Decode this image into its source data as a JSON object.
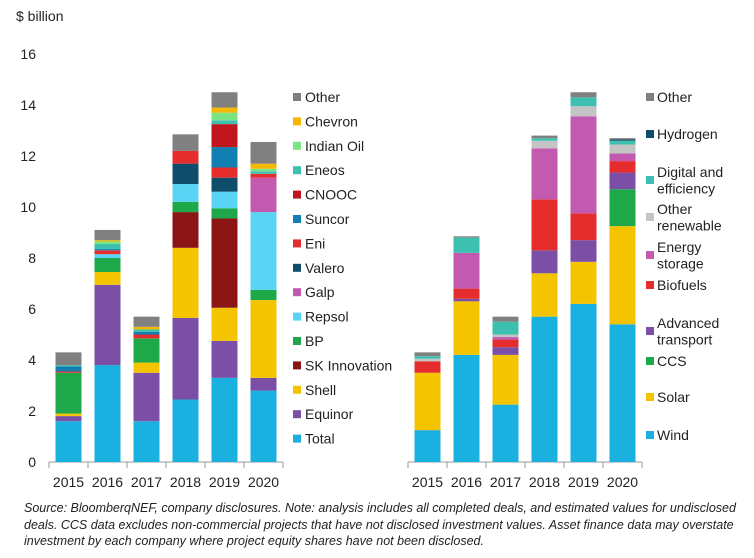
{
  "chart_data": [
    {
      "type": "bar",
      "stacked": true,
      "ylabel": "$ billion",
      "ylim": [
        0,
        16
      ],
      "yticks": [
        0,
        2,
        4,
        6,
        8,
        10,
        12,
        14,
        16
      ],
      "grid": false,
      "legend_placement": "right",
      "categories": [
        "2015",
        "2016",
        "2017",
        "2018",
        "2019",
        "2020"
      ],
      "series": [
        {
          "name": "Total",
          "color": "#1ab0e0",
          "values": [
            1.6,
            3.8,
            1.6,
            2.45,
            3.3,
            2.8
          ]
        },
        {
          "name": "Equinor",
          "color": "#7b4fa5",
          "values": [
            0.2,
            3.15,
            1.9,
            3.2,
            1.45,
            0.5
          ]
        },
        {
          "name": "Shell",
          "color": "#f5c400",
          "values": [
            0.1,
            0.5,
            0.4,
            2.75,
            1.3,
            3.05
          ]
        },
        {
          "name": "SK Innovation",
          "color": "#8b1414",
          "values": [
            0,
            0,
            0,
            1.4,
            3.5,
            0
          ]
        },
        {
          "name": "BP",
          "color": "#1fa84a",
          "values": [
            1.6,
            0.55,
            0.95,
            0.4,
            0.4,
            0.4
          ]
        },
        {
          "name": "Repsol",
          "color": "#5ad4f5",
          "values": [
            0,
            0.15,
            0,
            0.7,
            0.65,
            3.05
          ]
        },
        {
          "name": "Galp",
          "color": "#c45ab0",
          "values": [
            0,
            0,
            0,
            0,
            0,
            1.35
          ]
        },
        {
          "name": "Valero",
          "color": "#0f4e6a",
          "values": [
            0,
            0,
            0,
            0.8,
            0.55,
            0
          ]
        },
        {
          "name": "Eni",
          "color": "#e52d2d",
          "values": [
            0.05,
            0.15,
            0.15,
            0.5,
            0.4,
            0.15
          ]
        },
        {
          "name": "Suncor",
          "color": "#117fb2",
          "values": [
            0.2,
            0.05,
            0.1,
            0,
            0.8,
            0
          ]
        },
        {
          "name": "CNOOC",
          "color": "#c0161e",
          "values": [
            0,
            0,
            0,
            0,
            0.9,
            0
          ]
        },
        {
          "name": "Eneos",
          "color": "#3ec0b0",
          "values": [
            0.05,
            0.2,
            0.1,
            0,
            0.15,
            0.1
          ]
        },
        {
          "name": "Indian Oil",
          "color": "#7be382",
          "values": [
            0,
            0.1,
            0,
            0,
            0.3,
            0.1
          ]
        },
        {
          "name": "Chevron",
          "color": "#f5b800",
          "values": [
            0,
            0.05,
            0.1,
            0,
            0.2,
            0.2
          ]
        },
        {
          "name": "Other",
          "color": "#808080",
          "values": [
            0.5,
            0.4,
            0.4,
            0.65,
            0.6,
            0.85
          ]
        }
      ]
    },
    {
      "type": "bar",
      "stacked": true,
      "ylim": [
        0,
        16
      ],
      "grid": false,
      "legend_placement": "right",
      "categories": [
        "2015",
        "2016",
        "2017",
        "2018",
        "2019",
        "2020"
      ],
      "series": [
        {
          "name": "Wind",
          "color": "#1ab0e0",
          "values": [
            1.25,
            4.2,
            2.25,
            5.7,
            6.2,
            5.4
          ]
        },
        {
          "name": "Solar",
          "color": "#f5c400",
          "values": [
            2.25,
            2.1,
            1.95,
            1.7,
            1.65,
            3.85
          ]
        },
        {
          "name": "CCS",
          "color": "#1fa84a",
          "values": [
            0,
            0,
            0,
            0,
            0,
            1.45
          ]
        },
        {
          "name": "Advanced transport",
          "color": "#7b4fa5",
          "values": [
            0,
            0.1,
            0.3,
            0.9,
            0.85,
            0.65
          ]
        },
        {
          "name": "Biofuels",
          "color": "#e52d2d",
          "values": [
            0.45,
            0.4,
            0.3,
            2.0,
            1.05,
            0.45
          ]
        },
        {
          "name": "Energy storage",
          "color": "#c45ab0",
          "values": [
            0,
            1.4,
            0.1,
            2.0,
            3.8,
            0.3
          ]
        },
        {
          "name": "Other renewable",
          "color": "#c4c4c4",
          "values": [
            0.1,
            0,
            0.1,
            0.3,
            0.4,
            0.35
          ]
        },
        {
          "name": "Digital and efficiency",
          "color": "#3ec0b0",
          "values": [
            0.1,
            0.6,
            0.5,
            0.1,
            0.35,
            0.15
          ]
        },
        {
          "name": "Hydrogen",
          "color": "#0f4e6a",
          "values": [
            0,
            0,
            0,
            0,
            0,
            0.05
          ]
        },
        {
          "name": "Other",
          "color": "#808080",
          "values": [
            0.15,
            0.05,
            0.2,
            0.1,
            0.2,
            0.05
          ]
        }
      ]
    }
  ],
  "legend_left": [
    {
      "label": "Other",
      "color": "#808080"
    },
    {
      "label": "Chevron",
      "color": "#f5b800"
    },
    {
      "label": "Indian Oil",
      "color": "#7be382"
    },
    {
      "label": "Eneos",
      "color": "#3ec0b0"
    },
    {
      "label": "CNOOC",
      "color": "#c0161e"
    },
    {
      "label": "Suncor",
      "color": "#117fb2"
    },
    {
      "label": "Eni",
      "color": "#e52d2d"
    },
    {
      "label": "Valero",
      "color": "#0f4e6a"
    },
    {
      "label": "Galp",
      "color": "#c45ab0"
    },
    {
      "label": "Repsol",
      "color": "#5ad4f5"
    },
    {
      "label": "BP",
      "color": "#1fa84a"
    },
    {
      "label": "SK Innovation",
      "color": "#8b1414"
    },
    {
      "label": "Shell",
      "color": "#f5c400"
    },
    {
      "label": "Equinor",
      "color": "#7b4fa5"
    },
    {
      "label": "Total",
      "color": "#1ab0e0"
    }
  ],
  "legend_right": [
    {
      "lines": [
        "Other"
      ],
      "color": "#808080"
    },
    {
      "lines": [
        "Hydrogen"
      ],
      "color": "#0f4e6a"
    },
    {
      "lines": [
        "Digital and",
        "efficiency"
      ],
      "color": "#3ec0b0"
    },
    {
      "lines": [
        "Other",
        "renewable"
      ],
      "color": "#c4c4c4"
    },
    {
      "lines": [
        "Energy",
        "storage"
      ],
      "color": "#c45ab0"
    },
    {
      "lines": [
        "Biofuels"
      ],
      "color": "#e52d2d"
    },
    {
      "lines": [
        "Advanced",
        "transport"
      ],
      "color": "#7b4fa5"
    },
    {
      "lines": [
        "CCS"
      ],
      "color": "#1fa84a"
    },
    {
      "lines": [
        "Solar"
      ],
      "color": "#f5c400"
    },
    {
      "lines": [
        "Wind"
      ],
      "color": "#1ab0e0"
    }
  ],
  "footnote": "Source: BloomberqNEF, company disclosures. Note: analysis includes all completed deals, and estimated values for undisclosed deals. CCS data excludes non-commercial projects that have not disclosed investment values. Asset finance data may overstate investment by each company where project equity shares have not been disclosed."
}
